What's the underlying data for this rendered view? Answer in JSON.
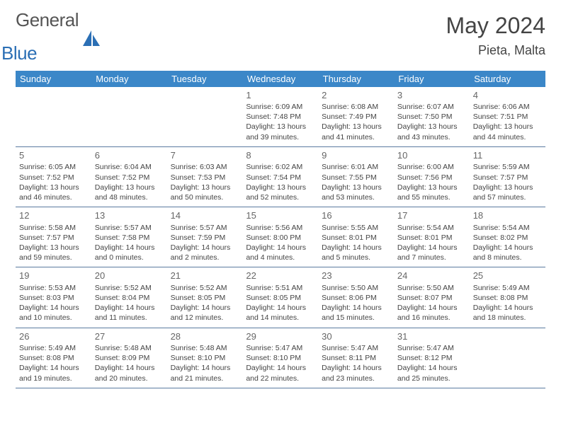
{
  "logo": {
    "text1": "General",
    "text2": "Blue"
  },
  "title": "May 2024",
  "location": "Pieta, Malta",
  "colors": {
    "header_bg": "#3b87c8",
    "header_text": "#ffffff",
    "border": "#5a7aa0",
    "body_text": "#444444",
    "daynum": "#666666",
    "logo_gray": "#555555",
    "logo_blue": "#2b6fb5"
  },
  "weekdays": [
    "Sunday",
    "Monday",
    "Tuesday",
    "Wednesday",
    "Thursday",
    "Friday",
    "Saturday"
  ],
  "weeks": [
    [
      null,
      null,
      null,
      {
        "d": "1",
        "sr": "6:09 AM",
        "ss": "7:48 PM",
        "dl": "13 hours and 39 minutes."
      },
      {
        "d": "2",
        "sr": "6:08 AM",
        "ss": "7:49 PM",
        "dl": "13 hours and 41 minutes."
      },
      {
        "d": "3",
        "sr": "6:07 AM",
        "ss": "7:50 PM",
        "dl": "13 hours and 43 minutes."
      },
      {
        "d": "4",
        "sr": "6:06 AM",
        "ss": "7:51 PM",
        "dl": "13 hours and 44 minutes."
      }
    ],
    [
      {
        "d": "5",
        "sr": "6:05 AM",
        "ss": "7:52 PM",
        "dl": "13 hours and 46 minutes."
      },
      {
        "d": "6",
        "sr": "6:04 AM",
        "ss": "7:52 PM",
        "dl": "13 hours and 48 minutes."
      },
      {
        "d": "7",
        "sr": "6:03 AM",
        "ss": "7:53 PM",
        "dl": "13 hours and 50 minutes."
      },
      {
        "d": "8",
        "sr": "6:02 AM",
        "ss": "7:54 PM",
        "dl": "13 hours and 52 minutes."
      },
      {
        "d": "9",
        "sr": "6:01 AM",
        "ss": "7:55 PM",
        "dl": "13 hours and 53 minutes."
      },
      {
        "d": "10",
        "sr": "6:00 AM",
        "ss": "7:56 PM",
        "dl": "13 hours and 55 minutes."
      },
      {
        "d": "11",
        "sr": "5:59 AM",
        "ss": "7:57 PM",
        "dl": "13 hours and 57 minutes."
      }
    ],
    [
      {
        "d": "12",
        "sr": "5:58 AM",
        "ss": "7:57 PM",
        "dl": "13 hours and 59 minutes."
      },
      {
        "d": "13",
        "sr": "5:57 AM",
        "ss": "7:58 PM",
        "dl": "14 hours and 0 minutes."
      },
      {
        "d": "14",
        "sr": "5:57 AM",
        "ss": "7:59 PM",
        "dl": "14 hours and 2 minutes."
      },
      {
        "d": "15",
        "sr": "5:56 AM",
        "ss": "8:00 PM",
        "dl": "14 hours and 4 minutes."
      },
      {
        "d": "16",
        "sr": "5:55 AM",
        "ss": "8:01 PM",
        "dl": "14 hours and 5 minutes."
      },
      {
        "d": "17",
        "sr": "5:54 AM",
        "ss": "8:01 PM",
        "dl": "14 hours and 7 minutes."
      },
      {
        "d": "18",
        "sr": "5:54 AM",
        "ss": "8:02 PM",
        "dl": "14 hours and 8 minutes."
      }
    ],
    [
      {
        "d": "19",
        "sr": "5:53 AM",
        "ss": "8:03 PM",
        "dl": "14 hours and 10 minutes."
      },
      {
        "d": "20",
        "sr": "5:52 AM",
        "ss": "8:04 PM",
        "dl": "14 hours and 11 minutes."
      },
      {
        "d": "21",
        "sr": "5:52 AM",
        "ss": "8:05 PM",
        "dl": "14 hours and 12 minutes."
      },
      {
        "d": "22",
        "sr": "5:51 AM",
        "ss": "8:05 PM",
        "dl": "14 hours and 14 minutes."
      },
      {
        "d": "23",
        "sr": "5:50 AM",
        "ss": "8:06 PM",
        "dl": "14 hours and 15 minutes."
      },
      {
        "d": "24",
        "sr": "5:50 AM",
        "ss": "8:07 PM",
        "dl": "14 hours and 16 minutes."
      },
      {
        "d": "25",
        "sr": "5:49 AM",
        "ss": "8:08 PM",
        "dl": "14 hours and 18 minutes."
      }
    ],
    [
      {
        "d": "26",
        "sr": "5:49 AM",
        "ss": "8:08 PM",
        "dl": "14 hours and 19 minutes."
      },
      {
        "d": "27",
        "sr": "5:48 AM",
        "ss": "8:09 PM",
        "dl": "14 hours and 20 minutes."
      },
      {
        "d": "28",
        "sr": "5:48 AM",
        "ss": "8:10 PM",
        "dl": "14 hours and 21 minutes."
      },
      {
        "d": "29",
        "sr": "5:47 AM",
        "ss": "8:10 PM",
        "dl": "14 hours and 22 minutes."
      },
      {
        "d": "30",
        "sr": "5:47 AM",
        "ss": "8:11 PM",
        "dl": "14 hours and 23 minutes."
      },
      {
        "d": "31",
        "sr": "5:47 AM",
        "ss": "8:12 PM",
        "dl": "14 hours and 25 minutes."
      },
      null
    ]
  ],
  "labels": {
    "sunrise": "Sunrise: ",
    "sunset": "Sunset: ",
    "daylight": "Daylight: "
  }
}
